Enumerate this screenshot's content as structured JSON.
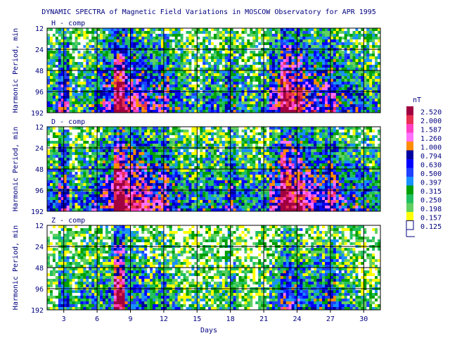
{
  "chart_data": {
    "type": "heatmap",
    "title": "DYNAMIC SPECTRA of Magnetic Field Variations in MOSCOW Observatory for APR 1995",
    "xlabel": "Days",
    "ylabel": "Harmonic Period, min",
    "xlim": [
      1.5,
      31.5
    ],
    "x_ticks": [
      "3",
      "6",
      "9",
      "12",
      "15",
      "18",
      "21",
      "24",
      "27",
      "30"
    ],
    "y_scale": "log2",
    "y_ticks": [
      "12",
      "24",
      "48",
      "96",
      "192"
    ],
    "grid": true,
    "panels": [
      {
        "name": "H - comp",
        "intensity": [
          0.3,
          0.55,
          0.25,
          0.3,
          0.4,
          0.55,
          0.95,
          0.65,
          0.6,
          0.5,
          0.55,
          0.4,
          0.3,
          0.25,
          0.35,
          0.3,
          0.45,
          0.3,
          0.25,
          0.3,
          0.55,
          0.85,
          0.75,
          0.6,
          0.55,
          0.6,
          0.45,
          0.4,
          0.35,
          0.3
        ]
      },
      {
        "name": "D - comp",
        "intensity": [
          0.35,
          0.6,
          0.3,
          0.35,
          0.45,
          0.6,
          1.0,
          0.75,
          0.7,
          0.6,
          0.6,
          0.45,
          0.35,
          0.3,
          0.4,
          0.35,
          0.5,
          0.35,
          0.3,
          0.35,
          0.6,
          0.9,
          0.8,
          0.65,
          0.6,
          0.65,
          0.5,
          0.45,
          0.4,
          0.35
        ]
      },
      {
        "name": "Z - comp",
        "intensity": [
          0.1,
          0.35,
          0.2,
          0.3,
          0.3,
          0.35,
          0.85,
          0.4,
          0.35,
          0.3,
          0.35,
          0.25,
          0.15,
          0.2,
          0.2,
          0.2,
          0.3,
          0.15,
          0.1,
          0.2,
          0.3,
          0.5,
          0.45,
          0.35,
          0.4,
          0.45,
          0.3,
          0.25,
          0.2,
          0.15
        ]
      }
    ],
    "legend": {
      "unit": "nT",
      "levels": [
        "2.520",
        "2.000",
        "1.587",
        "1.260",
        "1.000",
        "0.794",
        "0.630",
        "0.500",
        "0.397",
        "0.315",
        "0.250",
        "0.198",
        "0.157",
        "0.125"
      ],
      "colors": [
        "#a00040",
        "#e83050",
        "#ff40c0",
        "#ff70ff",
        "#ff8c00",
        "#0000a0",
        "#0000ff",
        "#1e40ff",
        "#1890ff",
        "#00a000",
        "#20c060",
        "#60d060",
        "#ffff00",
        "#ffffff"
      ]
    }
  },
  "colors": {
    "text": "#000080",
    "grid": "#000000"
  }
}
